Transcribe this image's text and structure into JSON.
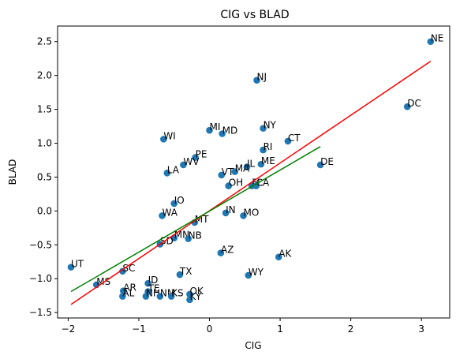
{
  "chart_data": {
    "type": "scatter",
    "title": "CIG vs BLAD",
    "xlabel": "CIG",
    "ylabel": "BLAD",
    "xlim": [
      -2.15,
      3.4
    ],
    "ylim": [
      -1.58,
      2.73
    ],
    "xticks": [
      -2,
      -1,
      0,
      1,
      2,
      3
    ],
    "yticks": [
      -1.5,
      -1.0,
      -0.5,
      0.0,
      0.5,
      1.0,
      1.5,
      2.0,
      2.5
    ],
    "tick_labels_x": [
      "−2",
      "−1",
      "0",
      "1",
      "2",
      "3"
    ],
    "tick_labels_y": [
      "−1.5",
      "−1.0",
      "−0.5",
      "0.0",
      "0.5",
      "1.0",
      "1.5",
      "2.0",
      "2.5"
    ],
    "grid": false,
    "marker_color": "#1f77b4",
    "points": [
      {
        "label": "NE",
        "x": 3.13,
        "y": 2.5
      },
      {
        "label": "NJ",
        "x": 0.67,
        "y": 1.93
      },
      {
        "label": "DC",
        "x": 2.8,
        "y": 1.54
      },
      {
        "label": "NY",
        "x": 0.76,
        "y": 1.22
      },
      {
        "label": "MI",
        "x": 0.0,
        "y": 1.19
      },
      {
        "label": "MD",
        "x": 0.18,
        "y": 1.14
      },
      {
        "label": "WI",
        "x": -0.65,
        "y": 1.06
      },
      {
        "label": "CT",
        "x": 1.11,
        "y": 1.03
      },
      {
        "label": "RI",
        "x": 0.76,
        "y": 0.9
      },
      {
        "label": "PE",
        "x": -0.2,
        "y": 0.79
      },
      {
        "label": "ME",
        "x": 0.73,
        "y": 0.69
      },
      {
        "label": "DE",
        "x": 1.57,
        "y": 0.68
      },
      {
        "label": "WV",
        "x": -0.37,
        "y": 0.68
      },
      {
        "label": "IL",
        "x": 0.53,
        "y": 0.65
      },
      {
        "label": "MA",
        "x": 0.36,
        "y": 0.58
      },
      {
        "label": "LA",
        "x": -0.6,
        "y": 0.56
      },
      {
        "label": "VT",
        "x": 0.17,
        "y": 0.53
      },
      {
        "label": "OH",
        "x": 0.27,
        "y": 0.37
      },
      {
        "label": "FL",
        "x": 0.6,
        "y": 0.37
      },
      {
        "label": "CA",
        "x": 0.66,
        "y": 0.37
      },
      {
        "label": "IO",
        "x": -0.5,
        "y": 0.11
      },
      {
        "label": "WA",
        "x": -0.67,
        "y": -0.07
      },
      {
        "label": "IN",
        "x": 0.23,
        "y": -0.03
      },
      {
        "label": "MO",
        "x": 0.48,
        "y": -0.07
      },
      {
        "label": "MT",
        "x": -0.21,
        "y": -0.17
      },
      {
        "label": "MN",
        "x": -0.5,
        "y": -0.4
      },
      {
        "label": "NB",
        "x": -0.3,
        "y": -0.41
      },
      {
        "label": "SD",
        "x": -0.7,
        "y": -0.49
      },
      {
        "label": "AZ",
        "x": 0.16,
        "y": -0.62
      },
      {
        "label": "AK",
        "x": 0.98,
        "y": -0.68
      },
      {
        "label": "UT",
        "x": -1.96,
        "y": -0.83
      },
      {
        "label": "SC",
        "x": -1.23,
        "y": -0.89
      },
      {
        "label": "TX",
        "x": -0.42,
        "y": -0.94
      },
      {
        "label": "WY",
        "x": 0.55,
        "y": -0.95
      },
      {
        "label": "MS",
        "x": -1.6,
        "y": -1.09
      },
      {
        "label": "ID",
        "x": -0.87,
        "y": -1.07
      },
      {
        "label": "AR",
        "x": -1.22,
        "y": -1.18
      },
      {
        "label": "AL",
        "x": -1.23,
        "y": -1.26
      },
      {
        "label": "TE",
        "x": -0.87,
        "y": -1.19
      },
      {
        "label": "NH",
        "x": -0.9,
        "y": -1.26
      },
      {
        "label": "NM",
        "x": -0.7,
        "y": -1.26
      },
      {
        "label": "KS",
        "x": -0.54,
        "y": -1.26
      },
      {
        "label": "OK",
        "x": -0.28,
        "y": -1.23
      },
      {
        "label": "KY",
        "x": -0.28,
        "y": -1.31
      }
    ],
    "lines": [
      {
        "color": "#ff0000",
        "x": [
          -1.96,
          3.13
        ],
        "y": [
          -1.38,
          2.21
        ]
      },
      {
        "color": "#008000",
        "x": [
          -1.96,
          1.57
        ],
        "y": [
          -1.19,
          0.95
        ]
      }
    ]
  }
}
